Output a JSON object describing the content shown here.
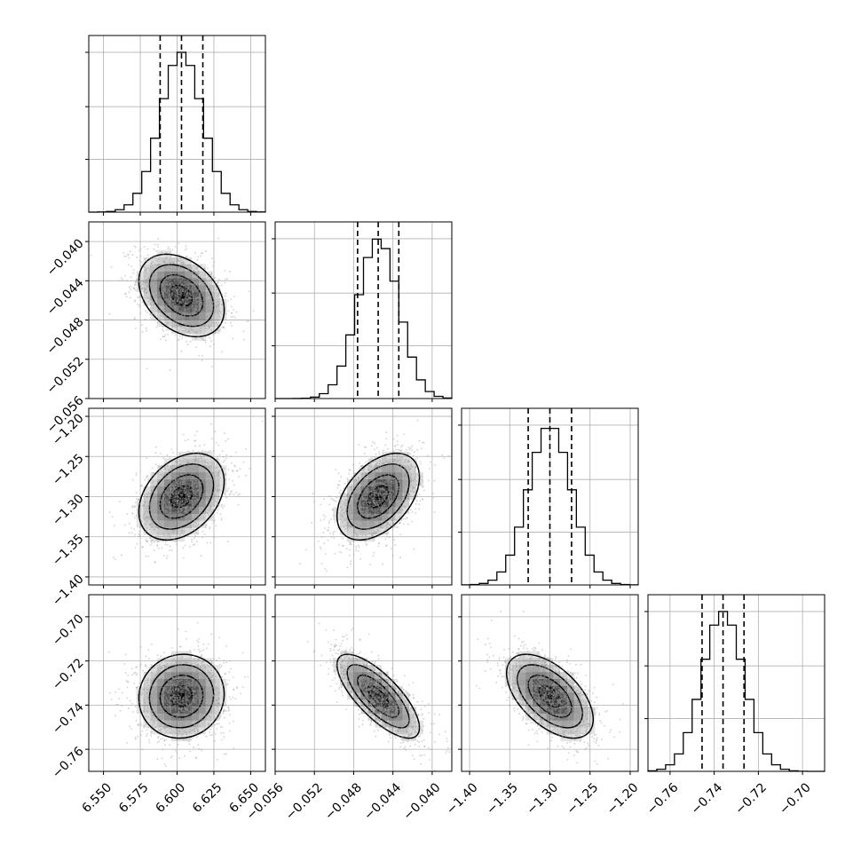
{
  "chart_data": {
    "type": "corner",
    "description_free": true,
    "grid": true,
    "colors": {
      "line": "#000000",
      "grid": "#b0b0b0",
      "density": "#000000",
      "points": "#9a9a9a"
    },
    "parameters": [
      {
        "lim": [
          6.54,
          6.66
        ],
        "ticks": [
          6.55,
          6.575,
          6.6,
          6.625,
          6.65
        ],
        "tick_labels": [
          "6.550",
          "6.575",
          "6.600",
          "6.625",
          "6.650"
        ],
        "quantiles": [
          6.5885,
          6.603,
          6.6175
        ],
        "mean": 6.603,
        "sd": 0.0145
      },
      {
        "lim": [
          -0.056,
          -0.038
        ],
        "ticks": [
          -0.056,
          -0.052,
          -0.048,
          -0.044,
          -0.04
        ],
        "tick_labels": [
          "−0.056",
          "−0.052",
          "−0.048",
          "−0.044",
          "−0.040"
        ],
        "quantiles": [
          -0.0476,
          -0.0455,
          -0.0434
        ],
        "mean": -0.0455,
        "sd": 0.0021
      },
      {
        "lim": [
          -1.41,
          -1.19
        ],
        "ticks": [
          -1.4,
          -1.35,
          -1.3,
          -1.25,
          -1.2
        ],
        "tick_labels": [
          "−1.40",
          "−1.35",
          "−1.30",
          "−1.25",
          "−1.20"
        ],
        "quantiles": [
          -1.327,
          -1.3,
          -1.273
        ],
        "mean": -1.3,
        "sd": 0.027
      },
      {
        "lim": [
          -0.77,
          -0.69
        ],
        "ticks": [
          -0.76,
          -0.74,
          -0.72,
          -0.7
        ],
        "tick_labels": [
          "−0.76",
          "−0.74",
          "−0.72",
          "−0.70"
        ],
        "quantiles": [
          -0.7455,
          -0.736,
          -0.7265
        ],
        "mean": -0.736,
        "sd": 0.0095
      }
    ],
    "correlations": {
      "1-0": -0.35,
      "2-0": 0.35,
      "2-1": 0.45,
      "3-0": 0.05,
      "3-1": -0.75,
      "3-2": -0.55
    }
  }
}
